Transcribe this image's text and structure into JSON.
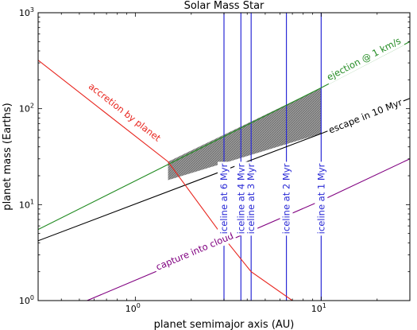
{
  "chart_data": {
    "type": "line",
    "title": "Solar Mass Star",
    "xlabel": "planet semimajor axis (AU)",
    "ylabel": "planet mass (Earths)",
    "xscale": "log",
    "yscale": "log",
    "xlim": [
      0.3,
      30
    ],
    "ylim": [
      1,
      1000
    ],
    "xticks": [
      {
        "base": "10",
        "exp": "0",
        "value": 1
      },
      {
        "base": "10",
        "exp": "1",
        "value": 10
      }
    ],
    "yticks": [
      {
        "base": "10",
        "exp": "0",
        "value": 1
      },
      {
        "base": "10",
        "exp": "1",
        "value": 10
      },
      {
        "base": "10",
        "exp": "2",
        "value": 100
      },
      {
        "base": "10",
        "exp": "3",
        "value": 1000
      }
    ],
    "grid": false,
    "series": [
      {
        "name": "ejection @ 1 km/s",
        "color": "#228b22",
        "x": [
          0.3,
          10.0,
          30.0
        ],
        "y": [
          5.5,
          165,
          500
        ]
      },
      {
        "name": "escape in 10 Myr",
        "color": "#000000",
        "x": [
          0.3,
          10.0,
          30.0
        ],
        "y": [
          4.2,
          55,
          128
        ]
      },
      {
        "name": "accretion by planet",
        "color": "#e8261f",
        "x": [
          0.3,
          1.5,
          3.0,
          4.2,
          7.0
        ],
        "y": [
          320,
          28,
          4.5,
          2.0,
          1.0
        ]
      },
      {
        "name": "capture into cloud",
        "color": "#800080",
        "x": [
          0.55,
          3.0,
          10.0,
          30.0
        ],
        "y": [
          1.0,
          4.0,
          11.0,
          30.0
        ]
      }
    ],
    "shaded_region": {
      "label": "",
      "color": "#808080",
      "x": [
        1.5,
        10.0
      ],
      "y_upper": [
        28,
        165
      ],
      "y_lower": [
        18,
        55
      ]
    },
    "icelines": [
      {
        "label": "iceline at 6 Myr",
        "x": 3.0
      },
      {
        "label": "iceline at 4 Myr",
        "x": 3.7
      },
      {
        "label": "iceline at 3 Myr",
        "x": 4.2
      },
      {
        "label": "iceline at 2 Myr",
        "x": 6.5
      },
      {
        "label": "iceline at 1 Myr",
        "x": 10.0
      }
    ],
    "iceline_color": "#2a2ad6",
    "iceline_y_range": [
      1,
      1000
    ]
  }
}
